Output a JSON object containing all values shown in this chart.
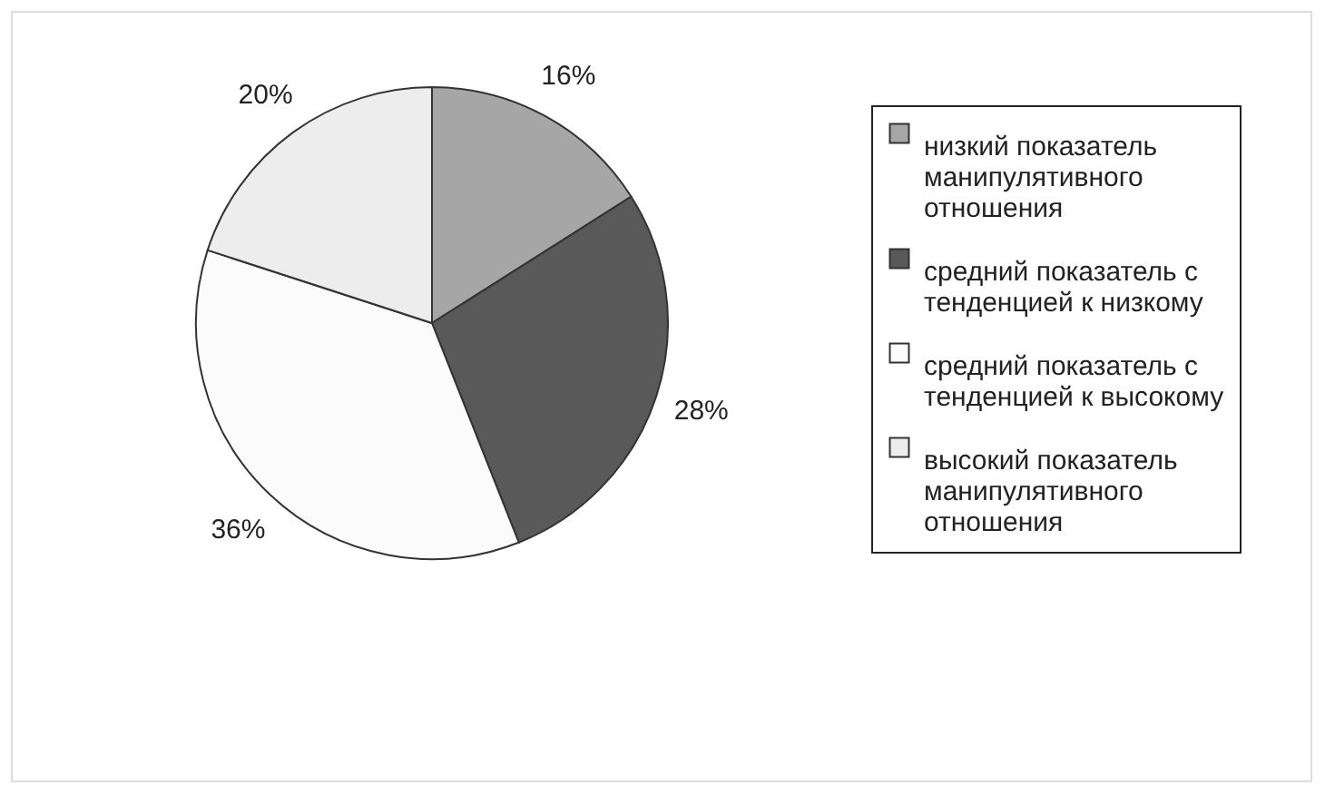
{
  "chart_data": {
    "type": "pie",
    "categories": [
      "низкий показатель\nманипулятивного\nотношения",
      "средний показатель с\nтенденцией к низкому",
      "средний показатель с\nтенденцией к высокому",
      "высокий показатель\nманипулятивного\nотношения"
    ],
    "values": [
      16,
      28,
      36,
      20
    ],
    "value_labels": [
      "16%",
      "28%",
      "36%",
      "20%"
    ],
    "colors": [
      "#a6a6a6",
      "#595959",
      "#fbfbfb",
      "#ededed"
    ],
    "legend": "right"
  }
}
